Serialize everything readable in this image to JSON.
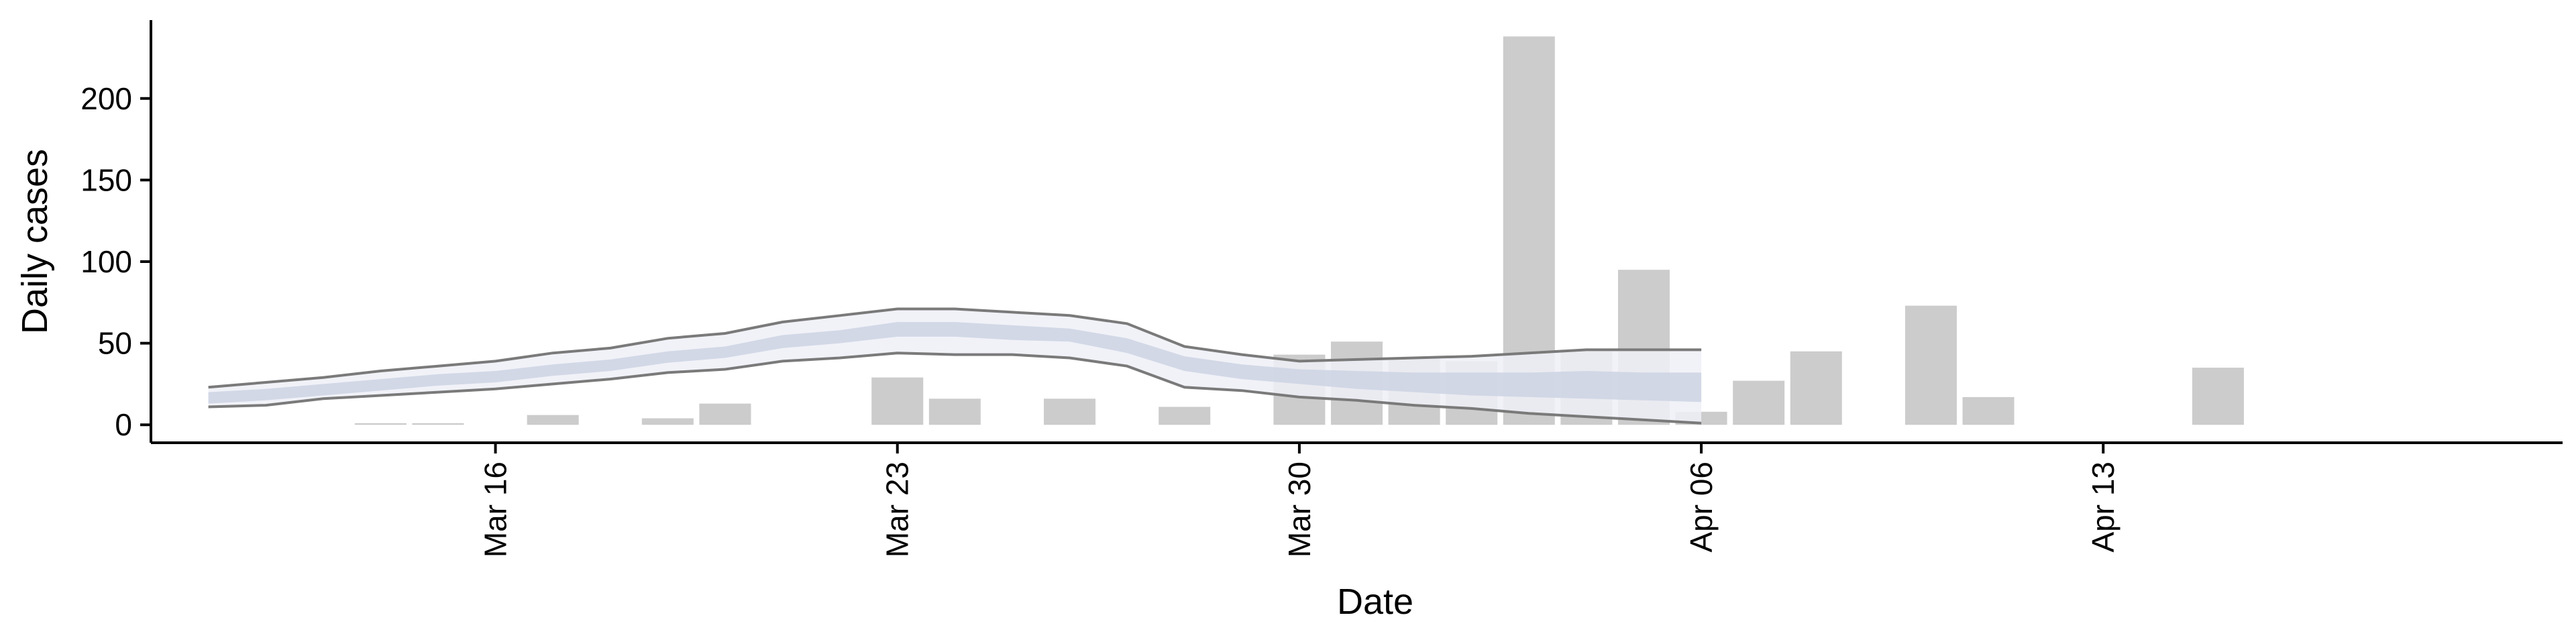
{
  "chart_data": {
    "type": "bar",
    "title": "",
    "xlabel": "Date",
    "ylabel": "Daily cases",
    "x_tick_labels": [
      "Mar 16",
      "Mar 23",
      "Mar 30",
      "Apr 06",
      "Apr 13"
    ],
    "x_tick_dates": [
      "2020-03-16",
      "2020-03-23",
      "2020-03-30",
      "2020-04-06",
      "2020-04-13"
    ],
    "xlim": [
      "2020-03-10",
      "2020-04-21"
    ],
    "y_ticks": [
      0,
      50,
      100,
      150,
      200
    ],
    "ylim": [
      -11,
      248
    ],
    "grid": false,
    "legend": "none",
    "bars": {
      "dates": [
        "2020-03-14",
        "2020-03-15",
        "2020-03-17",
        "2020-03-19",
        "2020-03-20",
        "2020-03-23",
        "2020-03-24",
        "2020-03-26",
        "2020-03-28",
        "2020-03-30",
        "2020-03-31",
        "2020-04-01",
        "2020-04-02",
        "2020-04-03",
        "2020-04-04",
        "2020-04-05",
        "2020-04-06",
        "2020-04-07",
        "2020-04-08",
        "2020-04-10",
        "2020-04-11",
        "2020-04-15"
      ],
      "values": [
        1,
        1,
        6,
        4,
        13,
        29,
        16,
        16,
        11,
        43,
        51,
        41,
        39,
        238,
        46,
        95,
        8,
        27,
        45,
        73,
        17,
        35
      ],
      "color": "#cccccc"
    },
    "estimate": {
      "dates": [
        "2020-03-11",
        "2020-03-12",
        "2020-03-13",
        "2020-03-14",
        "2020-03-15",
        "2020-03-16",
        "2020-03-17",
        "2020-03-18",
        "2020-03-19",
        "2020-03-20",
        "2020-03-21",
        "2020-03-22",
        "2020-03-23",
        "2020-03-24",
        "2020-03-25",
        "2020-03-26",
        "2020-03-27",
        "2020-03-28",
        "2020-03-29",
        "2020-03-30",
        "2020-03-31",
        "2020-04-01",
        "2020-04-02",
        "2020-04-03",
        "2020-04-04",
        "2020-04-05",
        "2020-04-06"
      ],
      "upper_90": [
        23,
        26,
        29,
        33,
        36,
        39,
        44,
        47,
        53,
        56,
        63,
        67,
        71,
        71,
        69,
        67,
        62,
        48,
        43,
        39,
        40,
        41,
        42,
        44,
        46,
        46,
        46
      ],
      "upper_50": [
        20,
        22,
        25,
        28,
        31,
        33,
        37,
        40,
        45,
        48,
        55,
        58,
        63,
        63,
        61,
        59,
        53,
        42,
        37,
        34,
        33,
        32,
        32,
        32,
        33,
        32,
        32
      ],
      "lower_50": [
        13,
        15,
        18,
        21,
        24,
        26,
        30,
        33,
        38,
        41,
        47,
        50,
        54,
        54,
        52,
        51,
        44,
        33,
        28,
        25,
        22,
        20,
        18,
        17,
        16,
        15,
        14
      ],
      "lower_90": [
        11,
        12,
        16,
        18,
        20,
        22,
        25,
        28,
        32,
        34,
        39,
        41,
        44,
        43,
        43,
        41,
        36,
        23,
        21,
        17,
        15,
        12,
        10,
        7,
        5,
        3,
        1
      ],
      "outer_fill": "#eef0f7",
      "inner_fill": "#cdd3e3",
      "outline_color": "#7a7a7a"
    },
    "axis_color": "#000000"
  }
}
